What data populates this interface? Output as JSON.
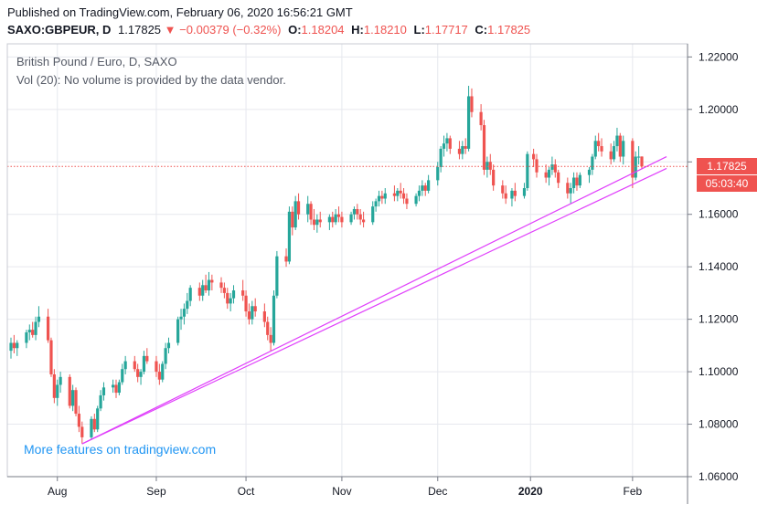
{
  "header": {
    "published_line": "Published on TradingView.com, February 06, 2020 16:56:21 GMT",
    "symbol": "SAXO:GBPEUR, D",
    "last": "1.17825",
    "change_arrow": "▼",
    "change": "−0.00379 (−0.32%)",
    "o_label": "O:",
    "o_value": "1.18204",
    "h_label": "H:",
    "h_value": "1.18210",
    "l_label": "L:",
    "l_value": "1.17717",
    "c_label": "C:",
    "c_value": "1.17825"
  },
  "legend": {
    "title": "British Pound / Euro, D, SAXO",
    "volume_note": "Vol (20): No volume is provided by the data vendor."
  },
  "watermark": "More features on tradingview.com",
  "price_tag": {
    "price": "1.17825",
    "countdown": "05:03:40"
  },
  "colors": {
    "up": "#26a69a",
    "down": "#ef5350",
    "trendline": "#e040fb",
    "last_price_line": "#ef5350",
    "watermark": "#2196f3"
  },
  "chart_data": {
    "type": "candlestick",
    "symbol": "SAXO:GBPEUR",
    "interval": "D",
    "ylim": [
      1.06,
      1.225
    ],
    "y_ticks": [
      "1.22000",
      "1.20000",
      "1.18000",
      "1.16000",
      "1.14000",
      "1.12000",
      "1.10000",
      "1.08000",
      "1.06000"
    ],
    "x_ticks": [
      "Aug",
      "Sep",
      "Oct",
      "Nov",
      "Dec",
      "2020",
      "Feb"
    ],
    "x_tick_dates": [
      "2019-08-01",
      "2019-09-02",
      "2019-10-01",
      "2019-11-01",
      "2019-12-02",
      "2020-01-01",
      "2020-02-03"
    ],
    "last_price": 1.17825,
    "trendlines": [
      {
        "from": [
          "2019-08-09",
          1.0725
        ],
        "to": [
          "2020-02-14",
          1.182
        ]
      },
      {
        "from": [
          "2019-08-09",
          1.0725
        ],
        "to": [
          "2020-02-14",
          1.1775
        ]
      }
    ],
    "candles": [
      {
        "d": "2019-07-17",
        "o": 1.108,
        "h": 1.113,
        "l": 1.105,
        "c": 1.111
      },
      {
        "d": "2019-07-18",
        "o": 1.111,
        "h": 1.114,
        "l": 1.107,
        "c": 1.109
      },
      {
        "d": "2019-07-19",
        "o": 1.109,
        "h": 1.112,
        "l": 1.106,
        "c": 1.111
      },
      {
        "d": "2019-07-22",
        "o": 1.111,
        "h": 1.116,
        "l": 1.109,
        "c": 1.115
      },
      {
        "d": "2019-07-23",
        "o": 1.115,
        "h": 1.118,
        "l": 1.112,
        "c": 1.116
      },
      {
        "d": "2019-07-24",
        "o": 1.116,
        "h": 1.119,
        "l": 1.113,
        "c": 1.114
      },
      {
        "d": "2019-07-25",
        "o": 1.114,
        "h": 1.121,
        "l": 1.112,
        "c": 1.119
      },
      {
        "d": "2019-07-26",
        "o": 1.119,
        "h": 1.125,
        "l": 1.117,
        "c": 1.121
      },
      {
        "d": "2019-07-29",
        "o": 1.121,
        "h": 1.124,
        "l": 1.111,
        "c": 1.112
      },
      {
        "d": "2019-07-30",
        "o": 1.112,
        "h": 1.113,
        "l": 1.098,
        "c": 1.099
      },
      {
        "d": "2019-07-31",
        "o": 1.099,
        "h": 1.101,
        "l": 1.088,
        "c": 1.09
      },
      {
        "d": "2019-08-01",
        "o": 1.09,
        "h": 1.097,
        "l": 1.087,
        "c": 1.095
      },
      {
        "d": "2019-08-02",
        "o": 1.095,
        "h": 1.1,
        "l": 1.092,
        "c": 1.098
      },
      {
        "d": "2019-08-05",
        "o": 1.098,
        "h": 1.099,
        "l": 1.086,
        "c": 1.087
      },
      {
        "d": "2019-08-06",
        "o": 1.087,
        "h": 1.095,
        "l": 1.085,
        "c": 1.093
      },
      {
        "d": "2019-08-07",
        "o": 1.093,
        "h": 1.094,
        "l": 1.083,
        "c": 1.084
      },
      {
        "d": "2019-08-08",
        "o": 1.084,
        "h": 1.087,
        "l": 1.077,
        "c": 1.079
      },
      {
        "d": "2019-08-09",
        "o": 1.079,
        "h": 1.081,
        "l": 1.0725,
        "c": 1.075
      },
      {
        "d": "2019-08-12",
        "o": 1.075,
        "h": 1.083,
        "l": 1.074,
        "c": 1.082
      },
      {
        "d": "2019-08-13",
        "o": 1.082,
        "h": 1.084,
        "l": 1.077,
        "c": 1.078
      },
      {
        "d": "2019-08-14",
        "o": 1.078,
        "h": 1.087,
        "l": 1.077,
        "c": 1.086
      },
      {
        "d": "2019-08-15",
        "o": 1.086,
        "h": 1.093,
        "l": 1.085,
        "c": 1.091
      },
      {
        "d": "2019-08-16",
        "o": 1.091,
        "h": 1.096,
        "l": 1.089,
        "c": 1.094
      },
      {
        "d": "2019-08-19",
        "o": 1.094,
        "h": 1.097,
        "l": 1.092,
        "c": 1.095
      },
      {
        "d": "2019-08-20",
        "o": 1.095,
        "h": 1.097,
        "l": 1.09,
        "c": 1.092
      },
      {
        "d": "2019-08-21",
        "o": 1.092,
        "h": 1.097,
        "l": 1.091,
        "c": 1.096
      },
      {
        "d": "2019-08-22",
        "o": 1.096,
        "h": 1.103,
        "l": 1.095,
        "c": 1.101
      },
      {
        "d": "2019-08-23",
        "o": 1.101,
        "h": 1.106,
        "l": 1.099,
        "c": 1.104
      },
      {
        "d": "2019-08-26",
        "o": 1.104,
        "h": 1.106,
        "l": 1.1,
        "c": 1.101
      },
      {
        "d": "2019-08-27",
        "o": 1.101,
        "h": 1.103,
        "l": 1.096,
        "c": 1.098
      },
      {
        "d": "2019-08-28",
        "o": 1.098,
        "h": 1.101,
        "l": 1.095,
        "c": 1.1
      },
      {
        "d": "2019-08-29",
        "o": 1.1,
        "h": 1.108,
        "l": 1.099,
        "c": 1.106
      },
      {
        "d": "2019-08-30",
        "o": 1.106,
        "h": 1.109,
        "l": 1.103,
        "c": 1.104
      },
      {
        "d": "2019-09-02",
        "o": 1.104,
        "h": 1.106,
        "l": 1.098,
        "c": 1.1
      },
      {
        "d": "2019-09-03",
        "o": 1.1,
        "h": 1.103,
        "l": 1.095,
        "c": 1.097
      },
      {
        "d": "2019-09-04",
        "o": 1.097,
        "h": 1.104,
        "l": 1.096,
        "c": 1.103
      },
      {
        "d": "2019-09-05",
        "o": 1.103,
        "h": 1.111,
        "l": 1.101,
        "c": 1.109
      },
      {
        "d": "2019-09-06",
        "o": 1.109,
        "h": 1.113,
        "l": 1.107,
        "c": 1.111
      },
      {
        "d": "2019-09-09",
        "o": 1.111,
        "h": 1.121,
        "l": 1.11,
        "c": 1.12
      },
      {
        "d": "2019-09-10",
        "o": 1.12,
        "h": 1.124,
        "l": 1.116,
        "c": 1.121
      },
      {
        "d": "2019-09-11",
        "o": 1.121,
        "h": 1.126,
        "l": 1.118,
        "c": 1.124
      },
      {
        "d": "2019-09-12",
        "o": 1.124,
        "h": 1.13,
        "l": 1.122,
        "c": 1.127
      },
      {
        "d": "2019-09-13",
        "o": 1.127,
        "h": 1.133,
        "l": 1.125,
        "c": 1.132
      },
      {
        "d": "2019-09-16",
        "o": 1.132,
        "h": 1.134,
        "l": 1.127,
        "c": 1.129
      },
      {
        "d": "2019-09-17",
        "o": 1.129,
        "h": 1.135,
        "l": 1.127,
        "c": 1.133
      },
      {
        "d": "2019-09-18",
        "o": 1.133,
        "h": 1.137,
        "l": 1.13,
        "c": 1.131
      },
      {
        "d": "2019-09-19",
        "o": 1.131,
        "h": 1.138,
        "l": 1.129,
        "c": 1.135
      },
      {
        "d": "2019-09-20",
        "o": 1.135,
        "h": 1.137,
        "l": 1.131,
        "c": 1.134
      },
      {
        "d": "2019-09-23",
        "o": 1.134,
        "h": 1.136,
        "l": 1.13,
        "c": 1.132
      },
      {
        "d": "2019-09-24",
        "o": 1.132,
        "h": 1.134,
        "l": 1.128,
        "c": 1.13
      },
      {
        "d": "2019-09-25",
        "o": 1.13,
        "h": 1.132,
        "l": 1.124,
        "c": 1.126
      },
      {
        "d": "2019-09-26",
        "o": 1.126,
        "h": 1.13,
        "l": 1.123,
        "c": 1.128
      },
      {
        "d": "2019-09-27",
        "o": 1.128,
        "h": 1.133,
        "l": 1.126,
        "c": 1.131
      },
      {
        "d": "2019-09-30",
        "o": 1.131,
        "h": 1.135,
        "l": 1.127,
        "c": 1.129
      },
      {
        "d": "2019-10-01",
        "o": 1.129,
        "h": 1.131,
        "l": 1.121,
        "c": 1.123
      },
      {
        "d": "2019-10-02",
        "o": 1.123,
        "h": 1.126,
        "l": 1.118,
        "c": 1.12
      },
      {
        "d": "2019-10-03",
        "o": 1.12,
        "h": 1.127,
        "l": 1.118,
        "c": 1.125
      },
      {
        "d": "2019-10-04",
        "o": 1.125,
        "h": 1.128,
        "l": 1.121,
        "c": 1.123
      },
      {
        "d": "2019-10-07",
        "o": 1.123,
        "h": 1.126,
        "l": 1.117,
        "c": 1.119
      },
      {
        "d": "2019-10-08",
        "o": 1.119,
        "h": 1.121,
        "l": 1.112,
        "c": 1.114
      },
      {
        "d": "2019-10-09",
        "o": 1.114,
        "h": 1.117,
        "l": 1.108,
        "c": 1.111
      },
      {
        "d": "2019-10-10",
        "o": 1.111,
        "h": 1.131,
        "l": 1.11,
        "c": 1.129
      },
      {
        "d": "2019-10-11",
        "o": 1.129,
        "h": 1.146,
        "l": 1.128,
        "c": 1.144
      },
      {
        "d": "2019-10-14",
        "o": 1.144,
        "h": 1.147,
        "l": 1.14,
        "c": 1.142
      },
      {
        "d": "2019-10-15",
        "o": 1.142,
        "h": 1.163,
        "l": 1.141,
        "c": 1.161
      },
      {
        "d": "2019-10-16",
        "o": 1.161,
        "h": 1.163,
        "l": 1.152,
        "c": 1.155
      },
      {
        "d": "2019-10-17",
        "o": 1.155,
        "h": 1.167,
        "l": 1.154,
        "c": 1.165
      },
      {
        "d": "2019-10-18",
        "o": 1.165,
        "h": 1.168,
        "l": 1.158,
        "c": 1.16
      },
      {
        "d": "2019-10-21",
        "o": 1.16,
        "h": 1.167,
        "l": 1.157,
        "c": 1.164
      },
      {
        "d": "2019-10-22",
        "o": 1.164,
        "h": 1.165,
        "l": 1.156,
        "c": 1.158
      },
      {
        "d": "2019-10-23",
        "o": 1.158,
        "h": 1.162,
        "l": 1.154,
        "c": 1.156
      },
      {
        "d": "2019-10-24",
        "o": 1.156,
        "h": 1.16,
        "l": 1.153,
        "c": 1.158
      },
      {
        "d": "2019-10-25",
        "o": 1.158,
        "h": 1.161,
        "l": 1.155,
        "c": 1.157
      },
      {
        "d": "2019-10-28",
        "o": 1.157,
        "h": 1.16,
        "l": 1.154,
        "c": 1.159
      },
      {
        "d": "2019-10-29",
        "o": 1.159,
        "h": 1.161,
        "l": 1.155,
        "c": 1.157
      },
      {
        "d": "2019-10-30",
        "o": 1.157,
        "h": 1.162,
        "l": 1.156,
        "c": 1.16
      },
      {
        "d": "2019-10-31",
        "o": 1.16,
        "h": 1.163,
        "l": 1.157,
        "c": 1.159
      },
      {
        "d": "2019-11-01",
        "o": 1.159,
        "h": 1.161,
        "l": 1.155,
        "c": 1.157
      },
      {
        "d": "2019-11-04",
        "o": 1.157,
        "h": 1.161,
        "l": 1.156,
        "c": 1.16
      },
      {
        "d": "2019-11-05",
        "o": 1.16,
        "h": 1.163,
        "l": 1.158,
        "c": 1.162
      },
      {
        "d": "2019-11-06",
        "o": 1.162,
        "h": 1.164,
        "l": 1.158,
        "c": 1.16
      },
      {
        "d": "2019-11-07",
        "o": 1.16,
        "h": 1.162,
        "l": 1.156,
        "c": 1.158
      },
      {
        "d": "2019-11-08",
        "o": 1.158,
        "h": 1.161,
        "l": 1.155,
        "c": 1.157
      },
      {
        "d": "2019-11-11",
        "o": 1.157,
        "h": 1.165,
        "l": 1.156,
        "c": 1.163
      },
      {
        "d": "2019-11-12",
        "o": 1.163,
        "h": 1.166,
        "l": 1.161,
        "c": 1.165
      },
      {
        "d": "2019-11-13",
        "o": 1.165,
        "h": 1.169,
        "l": 1.163,
        "c": 1.167
      },
      {
        "d": "2019-11-14",
        "o": 1.167,
        "h": 1.169,
        "l": 1.164,
        "c": 1.166
      },
      {
        "d": "2019-11-15",
        "o": 1.166,
        "h": 1.17,
        "l": 1.164,
        "c": 1.168
      },
      {
        "d": "2019-11-18",
        "o": 1.168,
        "h": 1.171,
        "l": 1.165,
        "c": 1.167
      },
      {
        "d": "2019-11-19",
        "o": 1.167,
        "h": 1.17,
        "l": 1.165,
        "c": 1.169
      },
      {
        "d": "2019-11-20",
        "o": 1.169,
        "h": 1.172,
        "l": 1.166,
        "c": 1.168
      },
      {
        "d": "2019-11-21",
        "o": 1.168,
        "h": 1.17,
        "l": 1.164,
        "c": 1.166
      },
      {
        "d": "2019-11-22",
        "o": 1.166,
        "h": 1.168,
        "l": 1.162,
        "c": 1.164
      },
      {
        "d": "2019-11-25",
        "o": 1.164,
        "h": 1.168,
        "l": 1.163,
        "c": 1.167
      },
      {
        "d": "2019-11-26",
        "o": 1.167,
        "h": 1.171,
        "l": 1.165,
        "c": 1.169
      },
      {
        "d": "2019-11-27",
        "o": 1.169,
        "h": 1.173,
        "l": 1.167,
        "c": 1.171
      },
      {
        "d": "2019-11-28",
        "o": 1.171,
        "h": 1.172,
        "l": 1.167,
        "c": 1.169
      },
      {
        "d": "2019-11-29",
        "o": 1.169,
        "h": 1.175,
        "l": 1.168,
        "c": 1.173
      },
      {
        "d": "2019-12-02",
        "o": 1.173,
        "h": 1.18,
        "l": 1.171,
        "c": 1.178
      },
      {
        "d": "2019-12-03",
        "o": 1.178,
        "h": 1.186,
        "l": 1.176,
        "c": 1.185
      },
      {
        "d": "2019-12-04",
        "o": 1.185,
        "h": 1.19,
        "l": 1.182,
        "c": 1.187
      },
      {
        "d": "2019-12-05",
        "o": 1.187,
        "h": 1.191,
        "l": 1.184,
        "c": 1.189
      },
      {
        "d": "2019-12-06",
        "o": 1.189,
        "h": 1.19,
        "l": 1.183,
        "c": 1.185
      },
      {
        "d": "2019-12-09",
        "o": 1.185,
        "h": 1.188,
        "l": 1.181,
        "c": 1.183
      },
      {
        "d": "2019-12-10",
        "o": 1.183,
        "h": 1.188,
        "l": 1.181,
        "c": 1.186
      },
      {
        "d": "2019-12-11",
        "o": 1.186,
        "h": 1.189,
        "l": 1.183,
        "c": 1.185
      },
      {
        "d": "2019-12-12",
        "o": 1.185,
        "h": 1.209,
        "l": 1.184,
        "c": 1.205
      },
      {
        "d": "2019-12-13",
        "o": 1.205,
        "h": 1.208,
        "l": 1.197,
        "c": 1.199
      },
      {
        "d": "2019-12-16",
        "o": 1.199,
        "h": 1.202,
        "l": 1.192,
        "c": 1.194
      },
      {
        "d": "2019-12-17",
        "o": 1.194,
        "h": 1.196,
        "l": 1.175,
        "c": 1.177
      },
      {
        "d": "2019-12-18",
        "o": 1.177,
        "h": 1.182,
        "l": 1.174,
        "c": 1.18
      },
      {
        "d": "2019-12-19",
        "o": 1.18,
        "h": 1.183,
        "l": 1.175,
        "c": 1.177
      },
      {
        "d": "2019-12-20",
        "o": 1.177,
        "h": 1.179,
        "l": 1.169,
        "c": 1.171
      },
      {
        "d": "2019-12-23",
        "o": 1.171,
        "h": 1.173,
        "l": 1.166,
        "c": 1.168
      },
      {
        "d": "2019-12-24",
        "o": 1.168,
        "h": 1.171,
        "l": 1.164,
        "c": 1.166
      },
      {
        "d": "2019-12-26",
        "o": 1.166,
        "h": 1.17,
        "l": 1.163,
        "c": 1.169
      },
      {
        "d": "2019-12-27",
        "o": 1.169,
        "h": 1.172,
        "l": 1.165,
        "c": 1.167
      },
      {
        "d": "2019-12-30",
        "o": 1.167,
        "h": 1.172,
        "l": 1.166,
        "c": 1.17
      },
      {
        "d": "2019-12-31",
        "o": 1.17,
        "h": 1.184,
        "l": 1.169,
        "c": 1.183
      },
      {
        "d": "2020-01-02",
        "o": 1.183,
        "h": 1.185,
        "l": 1.178,
        "c": 1.181
      },
      {
        "d": "2020-01-03",
        "o": 1.181,
        "h": 1.183,
        "l": 1.174,
        "c": 1.176
      },
      {
        "d": "2020-01-06",
        "o": 1.176,
        "h": 1.179,
        "l": 1.172,
        "c": 1.174
      },
      {
        "d": "2020-01-07",
        "o": 1.174,
        "h": 1.178,
        "l": 1.171,
        "c": 1.177
      },
      {
        "d": "2020-01-08",
        "o": 1.177,
        "h": 1.182,
        "l": 1.175,
        "c": 1.179
      },
      {
        "d": "2020-01-09",
        "o": 1.179,
        "h": 1.181,
        "l": 1.174,
        "c": 1.176
      },
      {
        "d": "2020-01-10",
        "o": 1.176,
        "h": 1.177,
        "l": 1.17,
        "c": 1.172
      },
      {
        "d": "2020-01-13",
        "o": 1.172,
        "h": 1.174,
        "l": 1.166,
        "c": 1.168
      },
      {
        "d": "2020-01-14",
        "o": 1.168,
        "h": 1.172,
        "l": 1.164,
        "c": 1.17
      },
      {
        "d": "2020-01-15",
        "o": 1.17,
        "h": 1.176,
        "l": 1.168,
        "c": 1.174
      },
      {
        "d": "2020-01-16",
        "o": 1.174,
        "h": 1.176,
        "l": 1.169,
        "c": 1.171
      },
      {
        "d": "2020-01-17",
        "o": 1.171,
        "h": 1.176,
        "l": 1.17,
        "c": 1.175
      },
      {
        "d": "2020-01-20",
        "o": 1.175,
        "h": 1.178,
        "l": 1.172,
        "c": 1.177
      },
      {
        "d": "2020-01-21",
        "o": 1.177,
        "h": 1.183,
        "l": 1.175,
        "c": 1.182
      },
      {
        "d": "2020-01-22",
        "o": 1.182,
        "h": 1.19,
        "l": 1.181,
        "c": 1.188
      },
      {
        "d": "2020-01-23",
        "o": 1.188,
        "h": 1.191,
        "l": 1.184,
        "c": 1.186
      },
      {
        "d": "2020-01-24",
        "o": 1.186,
        "h": 1.189,
        "l": 1.182,
        "c": 1.184
      },
      {
        "d": "2020-01-27",
        "o": 1.184,
        "h": 1.187,
        "l": 1.179,
        "c": 1.181
      },
      {
        "d": "2020-01-28",
        "o": 1.181,
        "h": 1.188,
        "l": 1.18,
        "c": 1.186
      },
      {
        "d": "2020-01-29",
        "o": 1.186,
        "h": 1.193,
        "l": 1.184,
        "c": 1.19
      },
      {
        "d": "2020-01-30",
        "o": 1.19,
        "h": 1.191,
        "l": 1.18,
        "c": 1.182
      },
      {
        "d": "2020-01-31",
        "o": 1.182,
        "h": 1.19,
        "l": 1.179,
        "c": 1.188
      },
      {
        "d": "2020-02-03",
        "o": 1.188,
        "h": 1.189,
        "l": 1.17,
        "c": 1.174
      },
      {
        "d": "2020-02-04",
        "o": 1.174,
        "h": 1.184,
        "l": 1.173,
        "c": 1.182
      },
      {
        "d": "2020-02-05",
        "o": 1.182,
        "h": 1.186,
        "l": 1.179,
        "c": 1.182
      },
      {
        "d": "2020-02-06",
        "o": 1.18204,
        "h": 1.1821,
        "l": 1.17717,
        "c": 1.17825
      }
    ]
  }
}
